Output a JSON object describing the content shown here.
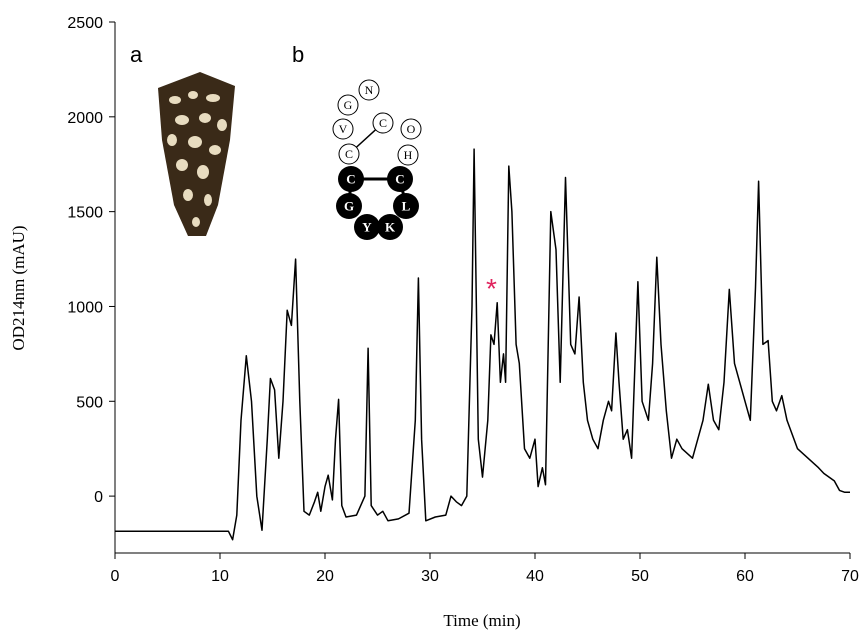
{
  "chart_data": {
    "type": "line",
    "xlabel": "Time (min)",
    "ylabel": "OD214nm (mAU)",
    "color": "#000000",
    "xlim": [
      0,
      70
    ],
    "xticks": [
      0,
      10,
      20,
      30,
      40,
      50,
      60,
      70
    ],
    "ylim": [
      -300,
      2500
    ],
    "yticks": [
      0,
      500,
      1000,
      1500,
      2000,
      2500
    ],
    "x": [
      0,
      10.8,
      11.2,
      11.6,
      12.0,
      12.5,
      13.0,
      13.5,
      14.0,
      14.5,
      14.8,
      15.2,
      15.6,
      16.0,
      16.4,
      16.8,
      17.2,
      17.6,
      18.0,
      18.5,
      19.0,
      19.3,
      19.6,
      20.0,
      20.3,
      20.7,
      21.0,
      21.3,
      21.6,
      22.0,
      23.0,
      23.8,
      24.1,
      24.4,
      25.0,
      25.5,
      26.0,
      27.0,
      28.0,
      28.6,
      28.9,
      29.2,
      29.6,
      30.5,
      31.5,
      32.0,
      32.5,
      33.0,
      33.5,
      34.0,
      34.2,
      34.6,
      35.0,
      35.5,
      35.8,
      36.1,
      36.4,
      36.7,
      37.0,
      37.2,
      37.5,
      37.8,
      38.2,
      38.5,
      39.0,
      39.5,
      40.0,
      40.3,
      40.7,
      41.0,
      41.5,
      42.0,
      42.4,
      42.9,
      43.4,
      43.8,
      44.2,
      44.6,
      45.0,
      45.5,
      46.0,
      46.5,
      47.0,
      47.3,
      47.7,
      48.0,
      48.4,
      48.8,
      49.2,
      49.8,
      50.2,
      50.8,
      51.2,
      51.6,
      52.0,
      52.5,
      53.0,
      53.5,
      54.0,
      55.0,
      56.0,
      56.5,
      57.0,
      57.5,
      58.0,
      58.5,
      59.0,
      60.0,
      60.5,
      61.0,
      61.3,
      61.7,
      62.2,
      62.6,
      63.0,
      63.5,
      64.0,
      65.0,
      66.0,
      67.0,
      67.5,
      68.5,
      69.0,
      69.5,
      70.0
    ],
    "values": [
      -185,
      -185,
      -230,
      -100,
      400,
      740,
      500,
      0,
      -180,
      300,
      620,
      560,
      200,
      500,
      980,
      900,
      1250,
      500,
      -80,
      -100,
      -30,
      20,
      -80,
      50,
      110,
      -20,
      300,
      510,
      -50,
      -110,
      -100,
      0,
      780,
      -50,
      -100,
      -80,
      -130,
      -120,
      -90,
      400,
      1150,
      300,
      -130,
      -110,
      -100,
      0,
      -30,
      -50,
      0,
      1000,
      1830,
      300,
      100,
      400,
      850,
      800,
      1020,
      600,
      750,
      600,
      1740,
      1500,
      800,
      700,
      250,
      200,
      300,
      50,
      150,
      60,
      1500,
      1300,
      600,
      1680,
      800,
      750,
      1050,
      600,
      400,
      300,
      250,
      400,
      500,
      450,
      860,
      600,
      300,
      350,
      200,
      1130,
      500,
      400,
      700,
      1260,
      800,
      450,
      200,
      300,
      250,
      200,
      400,
      590,
      400,
      350,
      600,
      1090,
      700,
      500,
      400,
      1100,
      1660,
      800,
      820,
      500,
      450,
      530,
      400,
      250,
      200,
      150,
      120,
      80,
      30,
      20,
      20
    ],
    "annotations": [
      "a",
      "b",
      "*"
    ]
  },
  "peptide": {
    "nodes": [
      "G",
      "N",
      "V",
      "C",
      "O",
      "C",
      "H",
      "C",
      "C",
      "G",
      "L",
      "Y",
      "K"
    ]
  }
}
